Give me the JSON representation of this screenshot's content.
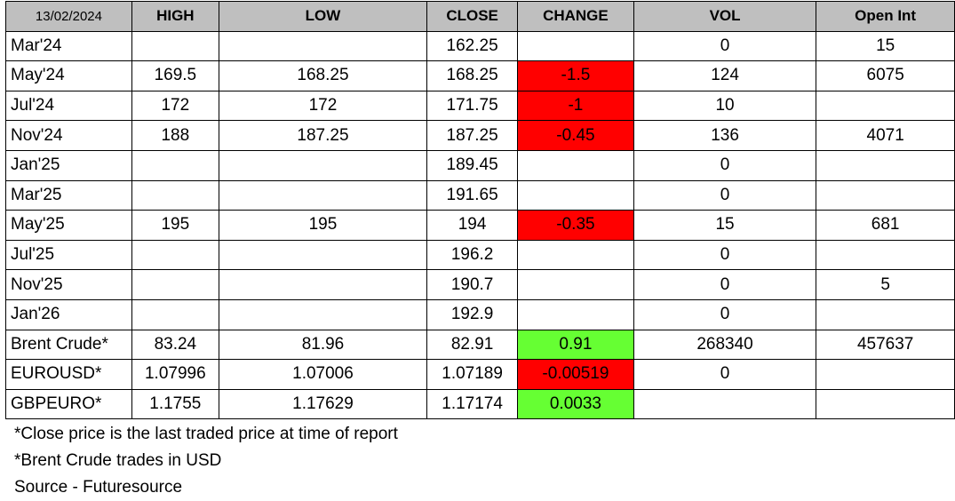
{
  "header": {
    "date": "13/02/2024",
    "high": "HIGH",
    "low": "LOW",
    "close": "CLOSE",
    "change": "CHANGE",
    "vol": "VOL",
    "open_int": "Open Int"
  },
  "rows": [
    {
      "label": "Mar'24",
      "high": "",
      "low": "",
      "close": "162.25",
      "change": "",
      "change_dir": "",
      "vol": "0",
      "open_int": "15"
    },
    {
      "label": "May'24",
      "high": "169.5",
      "low": "168.25",
      "close": "168.25",
      "change": "-1.5",
      "change_dir": "neg",
      "vol": "124",
      "open_int": "6075"
    },
    {
      "label": "Jul'24",
      "high": "172",
      "low": "172",
      "close": "171.75",
      "change": "-1",
      "change_dir": "neg",
      "vol": "10",
      "open_int": ""
    },
    {
      "label": "Nov'24",
      "high": "188",
      "low": "187.25",
      "close": "187.25",
      "change": "-0.45",
      "change_dir": "neg",
      "vol": "136",
      "open_int": "4071"
    },
    {
      "label": "Jan'25",
      "high": "",
      "low": "",
      "close": "189.45",
      "change": "",
      "change_dir": "",
      "vol": "0",
      "open_int": ""
    },
    {
      "label": "Mar'25",
      "high": "",
      "low": "",
      "close": "191.65",
      "change": "",
      "change_dir": "",
      "vol": "0",
      "open_int": ""
    },
    {
      "label": "May'25",
      "high": "195",
      "low": "195",
      "close": "194",
      "change": "-0.35",
      "change_dir": "neg",
      "vol": "15",
      "open_int": "681"
    },
    {
      "label": "Jul'25",
      "high": "",
      "low": "",
      "close": "196.2",
      "change": "",
      "change_dir": "",
      "vol": "0",
      "open_int": ""
    },
    {
      "label": "Nov'25",
      "high": "",
      "low": "",
      "close": "190.7",
      "change": "",
      "change_dir": "",
      "vol": "0",
      "open_int": "5"
    },
    {
      "label": "Jan'26",
      "high": "",
      "low": "",
      "close": "192.9",
      "change": "",
      "change_dir": "",
      "vol": "0",
      "open_int": ""
    },
    {
      "label": "Brent Crude*",
      "high": "83.24",
      "low": "81.96",
      "close": "82.91",
      "change": "0.91",
      "change_dir": "pos",
      "vol": "268340",
      "open_int": "457637"
    },
    {
      "label": "EUROUSD*",
      "high": "1.07996",
      "low": "1.07006",
      "close": "1.07189",
      "change": "-0.00519",
      "change_dir": "neg",
      "vol": "0",
      "open_int": ""
    },
    {
      "label": "GBPEURO*",
      "high": "1.1755",
      "low": "1.17629",
      "close": "1.17174",
      "change": "0.0033",
      "change_dir": "pos",
      "vol": "",
      "open_int": ""
    }
  ],
  "colors": {
    "header_bg": "#bfbfbf",
    "negative_change": "#ff0000",
    "positive_change": "#66ff33"
  },
  "notes": [
    "*Close price is the last traded price at time of report",
    "*Brent Crude trades in USD",
    "Source -  Futuresource"
  ]
}
